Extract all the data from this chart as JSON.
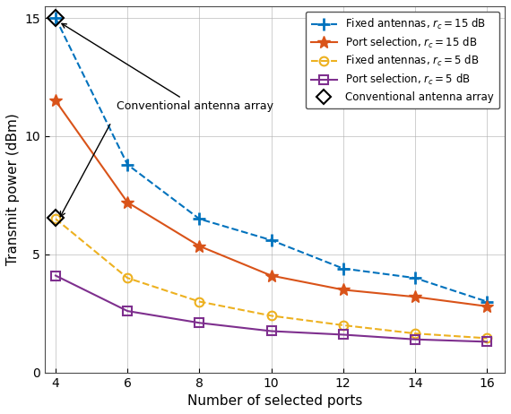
{
  "x": [
    4,
    6,
    8,
    10,
    12,
    14,
    16
  ],
  "fixed_15dB": [
    15.0,
    8.8,
    6.5,
    5.6,
    4.4,
    4.0,
    3.0
  ],
  "port_15dB": [
    11.5,
    7.2,
    5.35,
    4.1,
    3.5,
    3.2,
    2.8
  ],
  "fixed_5dB": [
    6.5,
    4.0,
    3.0,
    2.4,
    2.0,
    1.65,
    1.45
  ],
  "port_5dB": [
    4.1,
    2.6,
    2.1,
    1.75,
    1.6,
    1.4,
    1.3
  ],
  "conv_x": 4,
  "conv_y_15dB": 15.0,
  "conv_y_5dB": 6.55,
  "color_fixed_15": "#0072BD",
  "color_port_15": "#D95319",
  "color_fixed_5": "#EDB120",
  "color_port_5": "#7E2F8E",
  "color_conv": "#000000",
  "xlabel": "Number of selected ports",
  "ylabel": "Transmit power (dBm)",
  "ylim": [
    0,
    15.5
  ],
  "xlim": [
    3.7,
    16.5
  ],
  "xticks": [
    4,
    6,
    8,
    10,
    12,
    14,
    16
  ],
  "yticks": [
    0,
    5,
    10,
    15
  ],
  "legend_fixed_15": "Fixed antennas, $r_c = 15$ dB",
  "legend_port_15": "Port selection, $r_c = 15$ dB",
  "legend_fixed_5": "Fixed antennas, $r_c = 5$ dB",
  "legend_port_5": "Port selection, $r_c = 5$ dB",
  "legend_conv": "Conventional antenna array",
  "bg_color": "#ffffff",
  "grid_color": "#b0b0b0"
}
